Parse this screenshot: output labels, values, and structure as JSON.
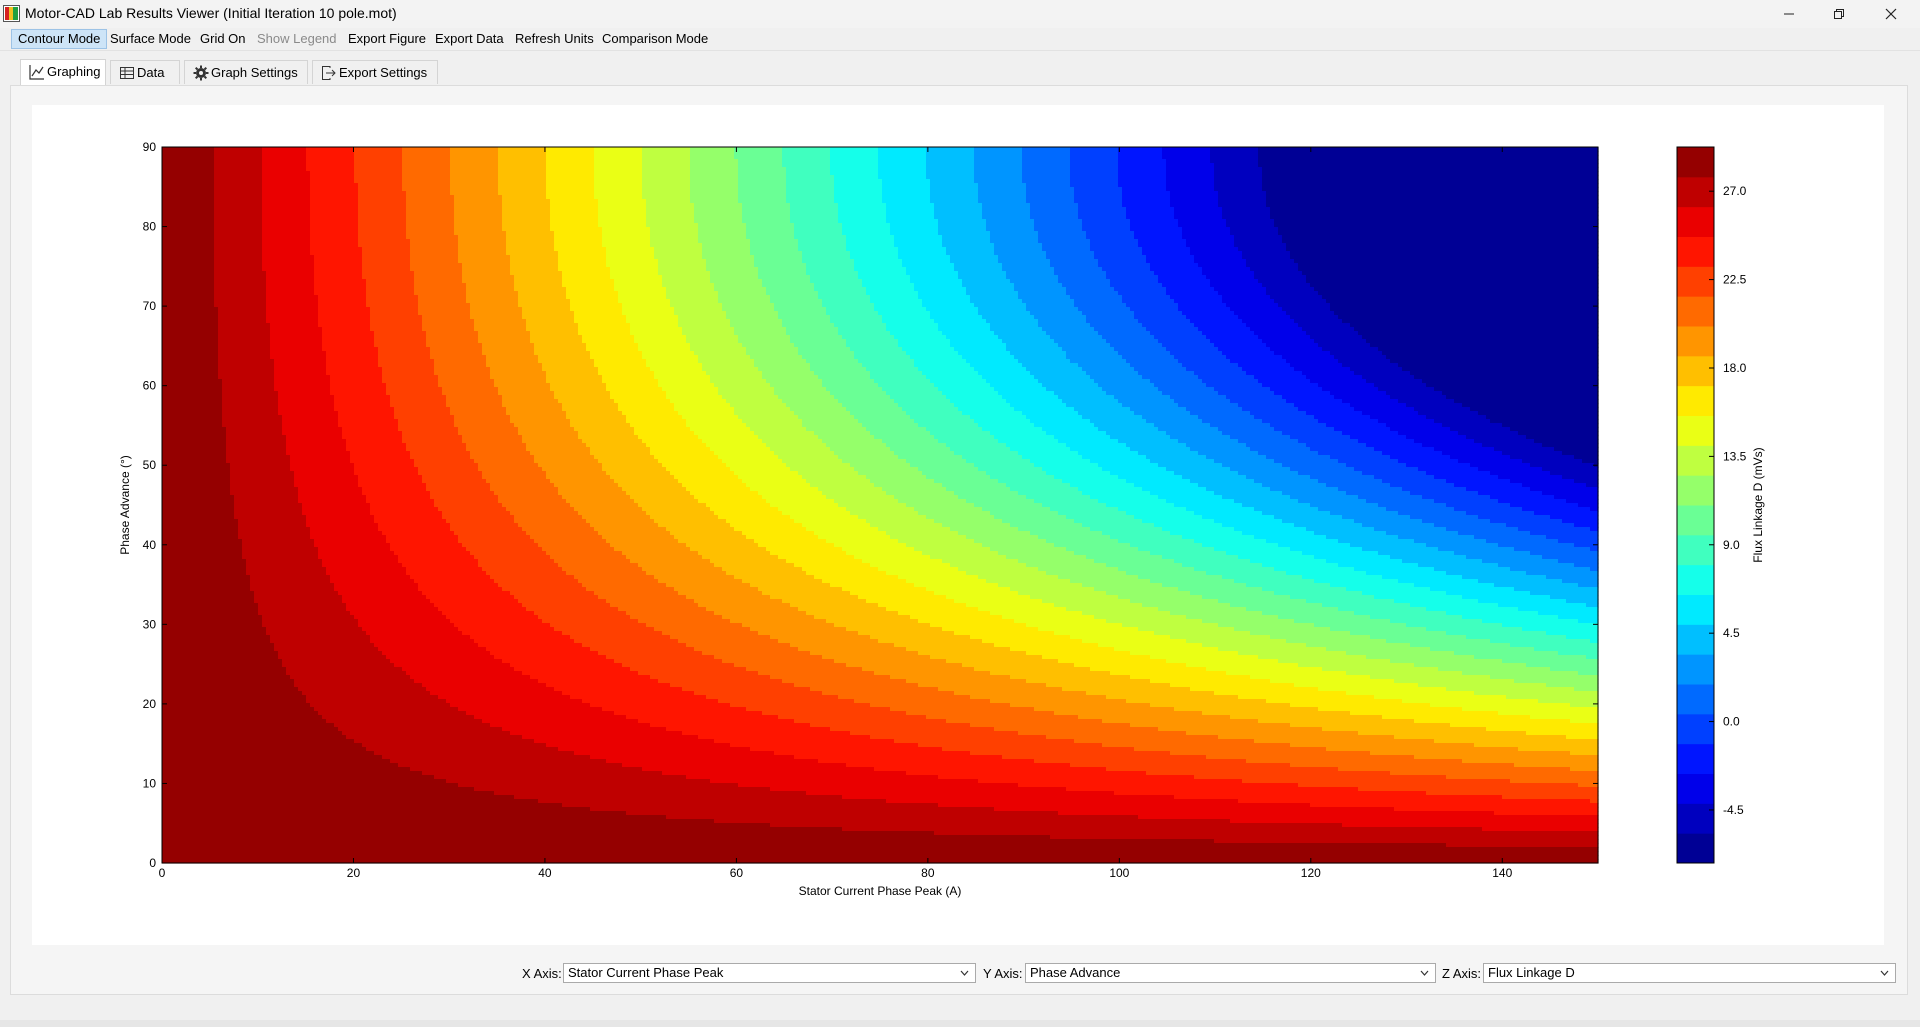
{
  "window": {
    "title": "Motor-CAD Lab Results Viewer (Initial Iteration 10 pole.mot)",
    "controls": [
      "minimize-icon",
      "restore-icon",
      "close-icon"
    ]
  },
  "menu": {
    "items": [
      "Contour Mode",
      "Surface Mode",
      "Grid On",
      "Show Legend",
      "Export Figure",
      "Export Data",
      "Refresh Units",
      "Comparison Mode"
    ],
    "active_item": "Contour Mode",
    "disabled_item": "Show Legend"
  },
  "tabs": [
    {
      "label": "Graphing",
      "icon": "line-chart-icon"
    },
    {
      "label": "Data",
      "icon": "table-icon"
    },
    {
      "label": "Graph Settings",
      "icon": "gear-icon"
    },
    {
      "label": "Export Settings",
      "icon": "export-icon"
    }
  ],
  "selected_tab": "Graphing",
  "chart_data": {
    "type": "contour",
    "title": "",
    "xlabel": "Stator Current Phase Peak  (A)",
    "ylabel": "Phase Advance  (°)",
    "colorbar_label": "Flux Linkage D (mVs)",
    "xlim": [
      0,
      150
    ],
    "ylim": [
      0,
      90
    ],
    "x_ticks": [
      "0",
      "20",
      "40",
      "60",
      "80",
      "100",
      "120",
      "140"
    ],
    "y_ticks": [
      "0",
      "10",
      "20",
      "30",
      "40",
      "50",
      "60",
      "70",
      "80",
      "90"
    ],
    "x_tick_values": [
      0,
      20,
      40,
      60,
      80,
      100,
      120,
      140
    ],
    "y_tick_values": [
      0,
      10,
      20,
      30,
      40,
      50,
      60,
      70,
      80,
      90
    ],
    "colorbar_ticks": [
      "27.0",
      "22.5",
      "18.0",
      "13.5",
      "9.0",
      "4.5",
      "0.0",
      "-4.5"
    ],
    "colorbar_tick_values": [
      27.0,
      22.5,
      18.0,
      13.5,
      9.0,
      4.5,
      0.0,
      -4.5
    ],
    "zlim": [
      -7.2,
      29.25
    ],
    "level_step": 1.5,
    "colormap": "jet",
    "model": "D = 28.9 - 0.302 * I * sin(phase advance); approximate, read from contour bands",
    "samples": [
      {
        "x": 0,
        "y": 90,
        "z": 28.9
      },
      {
        "x": 150,
        "y": 0,
        "z": 24.0
      },
      {
        "x": 150,
        "y": 30,
        "z": 14.7
      },
      {
        "x": 150,
        "y": 50,
        "z": 9.5
      },
      {
        "x": 150,
        "y": 90,
        "z": -6.3
      },
      {
        "x": 100,
        "y": 50,
        "z": 12.7
      },
      {
        "x": 60,
        "y": 90,
        "z": 14.8
      }
    ]
  },
  "axes": {
    "x": {
      "label": "X Axis:",
      "value": "Stator Current Phase Peak"
    },
    "y": {
      "label": "Y Axis:",
      "value": "Phase Advance"
    },
    "z": {
      "label": "Z Axis:",
      "value": "Flux Linkage D"
    }
  }
}
